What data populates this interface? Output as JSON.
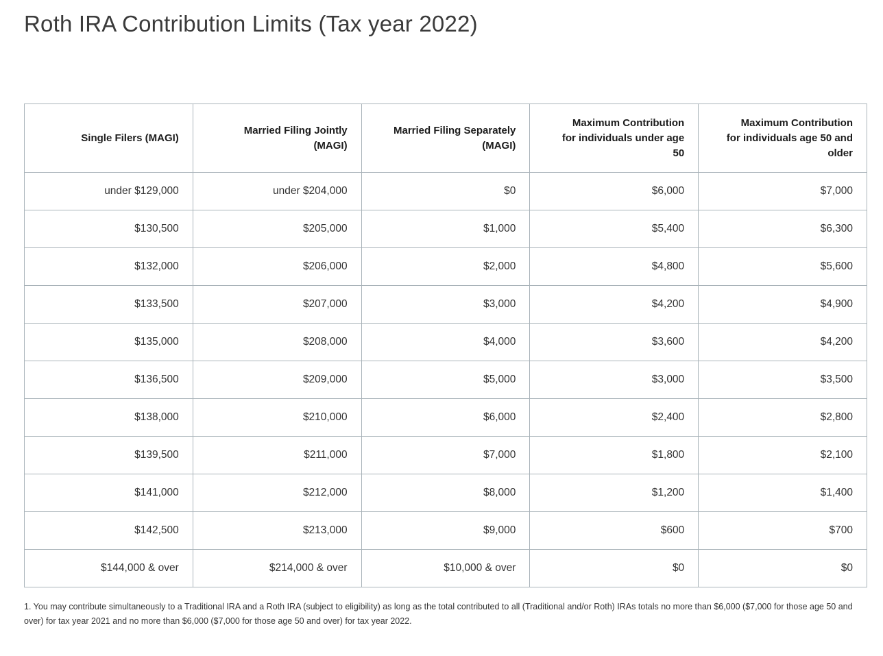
{
  "page": {
    "title": "Roth IRA Contribution Limits (Tax year 2022)",
    "footnote": "1. You may contribute simultaneously to a Traditional IRA and a Roth IRA (subject to eligibility) as long as the total contributed to all (Traditional and/or Roth) IRAs totals no more than $6,000 ($7,000 for those age 50 and over) for tax year 2021 and no more than $6,000 ($7,000 for those age 50 and over) for tax year 2022."
  },
  "table": {
    "columns": [
      "Single Filers (MAGI)",
      "Married Filing Jointly (MAGI)",
      "Married Filing Separately (MAGI)",
      "Maximum Contribution for individuals under age 50",
      "Maximum Contribution for individuals age 50 and older"
    ],
    "rows": [
      [
        "under $129,000",
        "under $204,000",
        "$0",
        "$6,000",
        "$7,000"
      ],
      [
        "$130,500",
        "$205,000",
        "$1,000",
        "$5,400",
        "$6,300"
      ],
      [
        "$132,000",
        "$206,000",
        "$2,000",
        "$4,800",
        "$5,600"
      ],
      [
        "$133,500",
        "$207,000",
        "$3,000",
        "$4,200",
        "$4,900"
      ],
      [
        "$135,000",
        "$208,000",
        "$4,000",
        "$3,600",
        "$4,200"
      ],
      [
        "$136,500",
        "$209,000",
        "$5,000",
        "$3,000",
        "$3,500"
      ],
      [
        "$138,000",
        "$210,000",
        "$6,000",
        "$2,400",
        "$2,800"
      ],
      [
        "$139,500",
        "$211,000",
        "$7,000",
        "$1,800",
        "$2,100"
      ],
      [
        "$141,000",
        "$212,000",
        "$8,000",
        "$1,200",
        "$1,400"
      ],
      [
        "$142,500",
        "$213,000",
        "$9,000",
        "$600",
        "$700"
      ],
      [
        "$144,000 & over",
        "$214,000 & over",
        "$10,000 & over",
        "$0",
        "$0"
      ]
    ]
  },
  "colors": {
    "border": "#a9b3b9",
    "text": "#333333",
    "header_text": "#1c1c1c",
    "title": "#3b3b3b",
    "background": "#ffffff"
  }
}
